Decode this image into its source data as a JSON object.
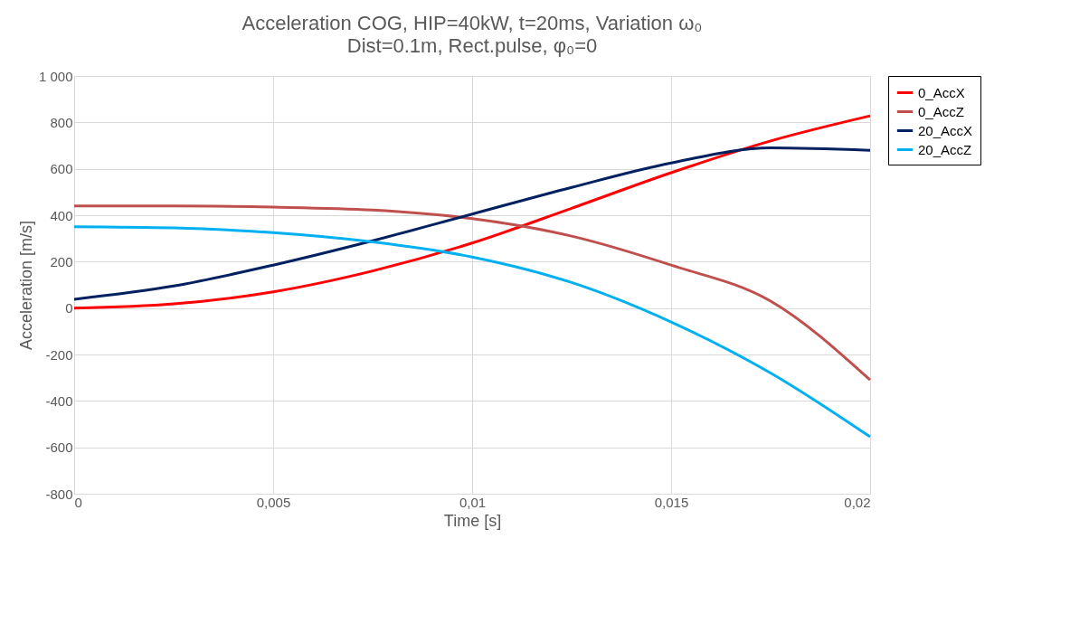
{
  "chart_data": {
    "type": "line",
    "title": "Acceleration COG, HIP=40kW, t=20ms, Variation ω₀",
    "subtitle": "Dist=0.1m, Rect.pulse, φ₀=0",
    "xlabel": "Time [s]",
    "ylabel": "Acceleration [m/s]",
    "x": [
      0,
      0.0025,
      0.005,
      0.0075,
      0.01,
      0.0125,
      0.015,
      0.0175,
      0.02
    ],
    "series": [
      {
        "name": "0_AccX",
        "color": "#ff0000",
        "values": [
          0,
          18,
          70,
          160,
          280,
          430,
          583,
          720,
          828
        ]
      },
      {
        "name": "0_AccZ",
        "color": "#c0504d",
        "values": [
          440,
          440,
          435,
          422,
          385,
          310,
          185,
          30,
          -310
        ]
      },
      {
        "name": "20_AccX",
        "color": "#002060",
        "values": [
          38,
          95,
          185,
          290,
          405,
          520,
          625,
          690,
          680
        ]
      },
      {
        "name": "20_AccZ",
        "color": "#00b0f0",
        "values": [
          350,
          345,
          325,
          285,
          220,
          110,
          -60,
          -280,
          -555
        ]
      }
    ],
    "xlim": [
      0,
      0.02
    ],
    "xticks": [
      0,
      {
        "value": 0.005,
        "label": "0,005"
      },
      {
        "value": 0.01,
        "label": "0,01"
      },
      {
        "value": 0.015,
        "label": "0,015"
      },
      {
        "value": 0.02,
        "label": "0,02"
      }
    ],
    "ylim": [
      -800,
      1000
    ],
    "yticks": [
      -800,
      -600,
      -400,
      -200,
      0,
      200,
      400,
      600,
      800,
      {
        "value": 1000,
        "label": "1 000"
      }
    ],
    "grid": true,
    "legend": "right",
    "marker": "none",
    "line_style": "solid"
  }
}
